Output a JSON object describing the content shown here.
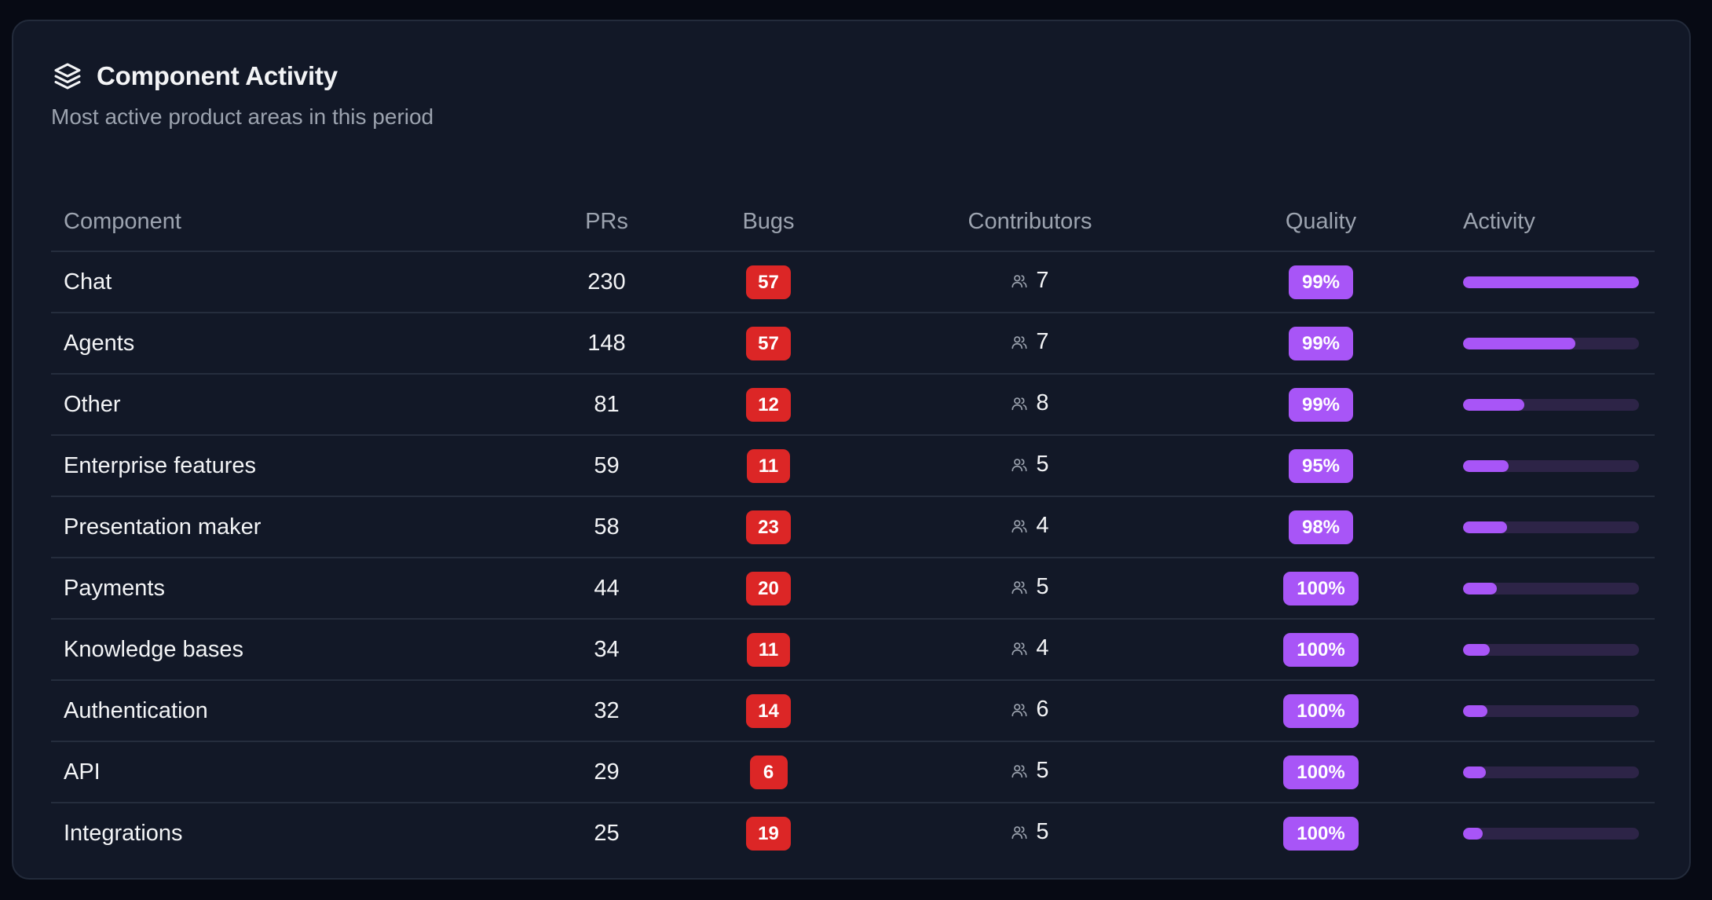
{
  "card": {
    "title": "Component Activity",
    "subtitle": "Most active product areas in this period",
    "title_icon": "layers-icon"
  },
  "table": {
    "headers": {
      "component": "Component",
      "prs": "PRs",
      "bugs": "Bugs",
      "contributors": "Contributors",
      "quality": "Quality",
      "activity": "Activity"
    },
    "contributors_icon": "users-icon",
    "rows": [
      {
        "component": "Chat",
        "prs": "230",
        "bugs": "57",
        "contributors": "7",
        "quality": "99%",
        "activity": 1.0
      },
      {
        "component": "Agents",
        "prs": "148",
        "bugs": "57",
        "contributors": "7",
        "quality": "99%",
        "activity": 0.64
      },
      {
        "component": "Other",
        "prs": "81",
        "bugs": "12",
        "contributors": "8",
        "quality": "99%",
        "activity": 0.35
      },
      {
        "component": "Enterprise features",
        "prs": "59",
        "bugs": "11",
        "contributors": "5",
        "quality": "95%",
        "activity": 0.26
      },
      {
        "component": "Presentation maker",
        "prs": "58",
        "bugs": "23",
        "contributors": "4",
        "quality": "98%",
        "activity": 0.25
      },
      {
        "component": "Payments",
        "prs": "44",
        "bugs": "20",
        "contributors": "5",
        "quality": "100%",
        "activity": 0.19
      },
      {
        "component": "Knowledge bases",
        "prs": "34",
        "bugs": "11",
        "contributors": "4",
        "quality": "100%",
        "activity": 0.15
      },
      {
        "component": "Authentication",
        "prs": "32",
        "bugs": "14",
        "contributors": "6",
        "quality": "100%",
        "activity": 0.14
      },
      {
        "component": "API",
        "prs": "29",
        "bugs": "6",
        "contributors": "5",
        "quality": "100%",
        "activity": 0.13
      },
      {
        "component": "Integrations",
        "prs": "25",
        "bugs": "19",
        "contributors": "5",
        "quality": "100%",
        "activity": 0.11
      }
    ]
  },
  "colors": {
    "background": "#070a14",
    "card": "#121827",
    "bug_badge": "#dc2626",
    "quality_badge": "#a855f7",
    "activity_fill": "#a855f7",
    "activity_track": "#2d2447"
  }
}
